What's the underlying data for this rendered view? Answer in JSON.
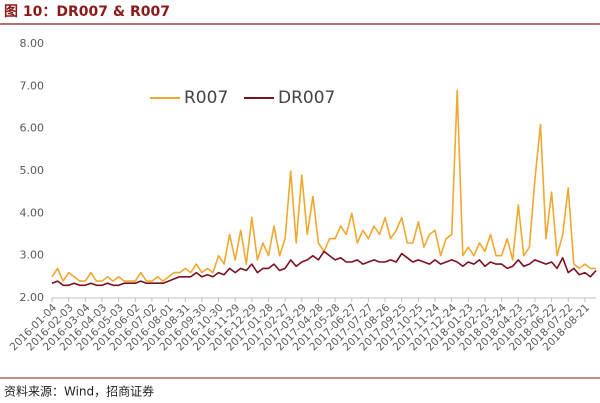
{
  "chart_data": {
    "type": "line",
    "title": "图 10：DR007 & R007",
    "source": "资料来源：Wind，招商证券",
    "categories": [
      "2016-01-04",
      null,
      null,
      "2016-02-03",
      null,
      null,
      "2016-03-04",
      null,
      null,
      "2016-04-03",
      null,
      null,
      "2016-05-03",
      null,
      null,
      "2016-06-02",
      null,
      null,
      "2016-07-02",
      null,
      null,
      "2016-08-01",
      null,
      null,
      "2016-08-31",
      null,
      null,
      "2016-09-30",
      null,
      null,
      "2016-10-30",
      null,
      null,
      "2016-11-29",
      null,
      null,
      "2016-12-29",
      null,
      null,
      "2017-01-28",
      null,
      null,
      "2017-02-27",
      null,
      null,
      "2017-03-29",
      null,
      null,
      "2017-04-28",
      null,
      null,
      "2017-05-28",
      null,
      null,
      "2017-06-27",
      null,
      null,
      "2017-07-27",
      null,
      null,
      "2017-08-26",
      null,
      null,
      "2017-09-25",
      null,
      null,
      "2017-10-25",
      null,
      null,
      "2017-11-24",
      null,
      null,
      "2017-12-24",
      null,
      null,
      "2018-01-23",
      null,
      null,
      "2018-02-22",
      null,
      null,
      "2018-03-24",
      null,
      null,
      "2018-04-23",
      null,
      null,
      "2018-05-23",
      null,
      null,
      "2018-06-22",
      null,
      null,
      "2018-07-22",
      null,
      null,
      "2018-08-21",
      null,
      null
    ],
    "series": [
      {
        "name": "R007",
        "color": "#f0a830",
        "values": [
          2.5,
          2.7,
          2.4,
          2.6,
          2.5,
          2.4,
          2.4,
          2.6,
          2.4,
          2.4,
          2.5,
          2.4,
          2.5,
          2.4,
          2.4,
          2.4,
          2.6,
          2.4,
          2.4,
          2.5,
          2.4,
          2.5,
          2.6,
          2.6,
          2.7,
          2.6,
          2.8,
          2.6,
          2.7,
          2.6,
          3.0,
          2.8,
          3.5,
          2.9,
          3.6,
          2.8,
          3.9,
          2.9,
          3.3,
          3.0,
          3.7,
          3.0,
          3.4,
          5.0,
          3.3,
          4.9,
          3.5,
          4.4,
          3.3,
          3.1,
          3.4,
          3.4,
          3.7,
          3.5,
          4.0,
          3.3,
          3.6,
          3.4,
          3.7,
          3.5,
          3.9,
          3.4,
          3.6,
          3.9,
          3.3,
          3.3,
          3.8,
          3.2,
          3.5,
          3.6,
          3.0,
          3.4,
          3.5,
          6.9,
          3.0,
          3.2,
          3.0,
          3.3,
          3.1,
          3.5,
          3.0,
          3.0,
          3.4,
          2.9,
          4.2,
          3.0,
          3.2,
          4.8,
          6.1,
          3.4,
          4.5,
          3.0,
          3.5,
          4.6,
          2.8,
          2.7,
          2.8,
          2.7,
          2.7
        ]
      },
      {
        "name": "DR007",
        "color": "#7a1020",
        "values": [
          2.35,
          2.4,
          2.3,
          2.3,
          2.35,
          2.3,
          2.3,
          2.35,
          2.3,
          2.3,
          2.35,
          2.3,
          2.3,
          2.35,
          2.35,
          2.35,
          2.4,
          2.35,
          2.35,
          2.35,
          2.35,
          2.4,
          2.45,
          2.5,
          2.5,
          2.5,
          2.6,
          2.5,
          2.55,
          2.5,
          2.6,
          2.55,
          2.7,
          2.6,
          2.7,
          2.65,
          2.8,
          2.6,
          2.7,
          2.7,
          2.8,
          2.65,
          2.7,
          2.9,
          2.75,
          2.85,
          2.9,
          3.0,
          2.9,
          3.1,
          3.0,
          2.9,
          2.95,
          2.85,
          2.85,
          2.9,
          2.8,
          2.85,
          2.9,
          2.85,
          2.85,
          2.9,
          2.85,
          3.05,
          2.95,
          2.85,
          2.9,
          2.85,
          2.8,
          2.9,
          2.8,
          2.85,
          2.9,
          2.85,
          2.75,
          2.85,
          2.8,
          2.9,
          2.75,
          2.85,
          2.8,
          2.8,
          2.7,
          2.75,
          2.9,
          2.75,
          2.8,
          2.9,
          2.85,
          2.8,
          2.85,
          2.7,
          2.95,
          2.6,
          2.7,
          2.55,
          2.6,
          2.5,
          2.65
        ]
      }
    ],
    "ylim": [
      2,
      8
    ],
    "yticks": [
      {
        "value": 2,
        "label": "2.00"
      },
      {
        "value": 3,
        "label": "3.00"
      },
      {
        "value": 4,
        "label": "4.00"
      },
      {
        "value": 5,
        "label": "5.00"
      },
      {
        "value": 6,
        "label": "6.00"
      },
      {
        "value": 7,
        "label": "7.00"
      },
      {
        "value": 8,
        "label": "8.00"
      }
    ],
    "grid": false,
    "legend": "top-left"
  }
}
